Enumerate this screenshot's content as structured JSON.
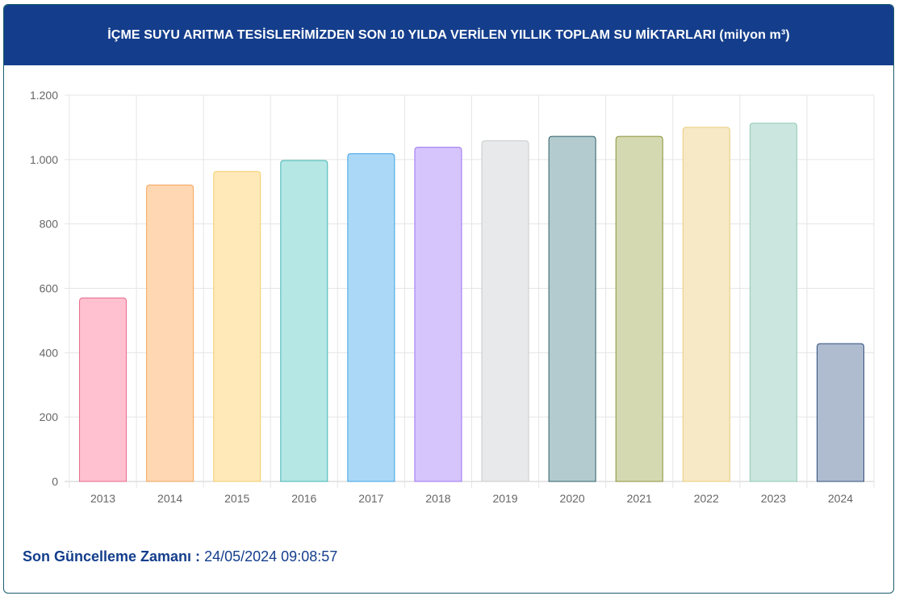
{
  "header": {
    "title": "İÇME SUYU ARITMA TESİSLERİMİZDEN SON 10 YILDA VERİLEN YILLIK TOPLAM SU MİKTARLARI (milyon m³)"
  },
  "footer": {
    "label": "Son Güncelleme Zamanı :",
    "value": "24/05/2024 09:08:57"
  },
  "chart_data": {
    "type": "bar",
    "title": "İÇME SUYU ARITMA TESİSLERİMİZDEN SON 10 YILDA VERİLEN YILLIK TOPLAM SU MİKTARLARI (milyon m³)",
    "categories": [
      "2013",
      "2014",
      "2015",
      "2016",
      "2017",
      "2018",
      "2019",
      "2020",
      "2021",
      "2022",
      "2023",
      "2024"
    ],
    "values": [
      570,
      921,
      963,
      997,
      1018,
      1038,
      1058,
      1072,
      1072,
      1100,
      1113,
      428
    ],
    "ylim": [
      0,
      1200
    ],
    "yticks": [
      0,
      200,
      400,
      600,
      800,
      1000,
      1200
    ],
    "ytick_labels": [
      "0",
      "200",
      "400",
      "600",
      "800",
      "1.000",
      "1.200"
    ],
    "grid": true,
    "legend": "none",
    "colors": {
      "fills": [
        "#ffc0cf",
        "#ffd7b2",
        "#ffe9b9",
        "#b5e7e5",
        "#acd8f7",
        "#d6c4fd",
        "#e8e9eb",
        "#b3cbcf",
        "#d5d9b1",
        "#f7e9c6",
        "#cbe6de",
        "#afbbcf"
      ],
      "borders": [
        "#e56b8c",
        "#f2a65c",
        "#f2cf6a",
        "#43b8b4",
        "#3aa2e6",
        "#9c74ee",
        "#c9cacc",
        "#2d5f66",
        "#8a9139",
        "#e8cd7a",
        "#8fc9b4",
        "#2f4f7e"
      ]
    }
  }
}
